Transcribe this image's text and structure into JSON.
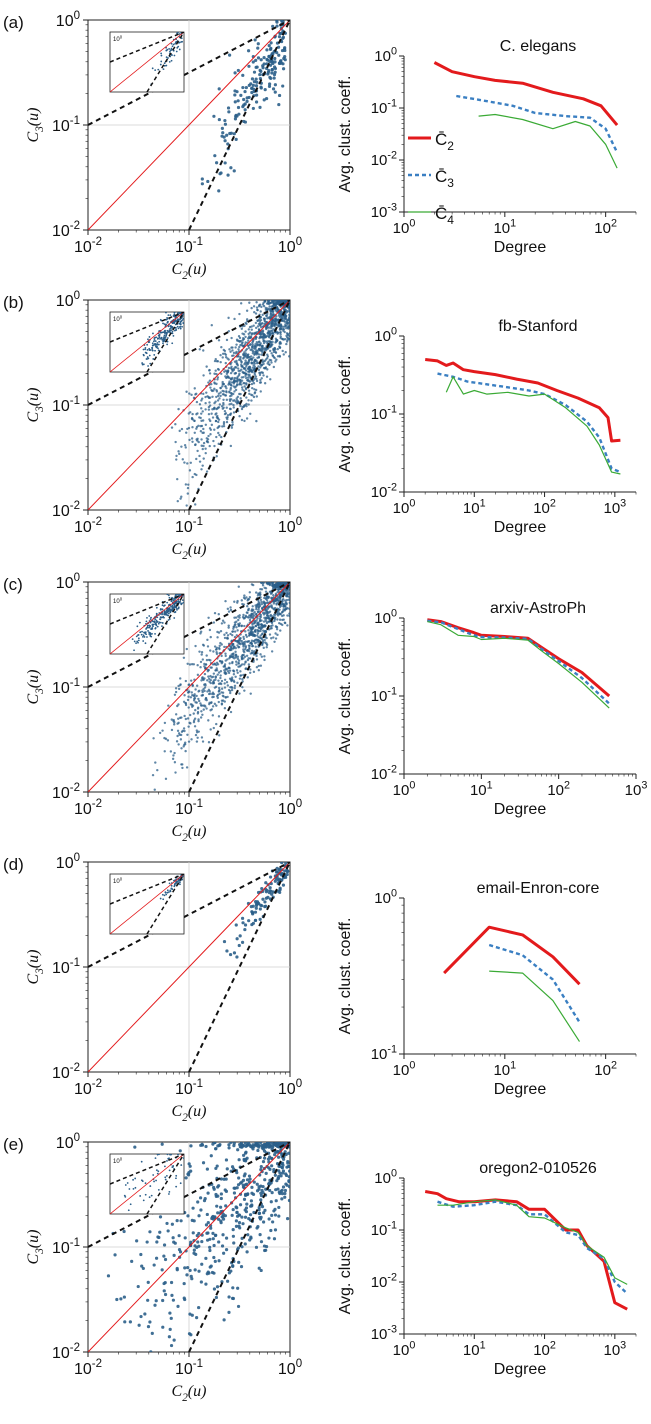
{
  "chart_data": [
    {
      "panel": "(a)",
      "type": "scatter",
      "xlabel": "C_2(u)",
      "ylabel": "C_3(u)",
      "xscale": "log",
      "yscale": "log",
      "xlim": [
        0.01,
        1
      ],
      "ylim": [
        0.01,
        1
      ],
      "grid": "lines at 0.1",
      "x_ticks": [
        "10^-2",
        "10^-1",
        "10^0"
      ],
      "y_ticks": [
        "10^-2",
        "10^-1",
        "10^0"
      ],
      "inset": true,
      "density": "sparse",
      "cloud": {
        "x_range": [
          0.12,
          0.9
        ],
        "slope": 1.6,
        "intercept": -0.05,
        "spread": 0.16,
        "n": 200
      },
      "reference_lines": [
        "y = x (red)",
        "y = x^2 (dashed)",
        "y = sqrt(x)/10 (dashed)"
      ]
    },
    {
      "panel": "(a)",
      "type": "line",
      "title": "C. elegans",
      "xlabel": "Degree",
      "ylabel": "Avg. clust. coeff.",
      "xscale": "log",
      "yscale": "log",
      "xlim": [
        1,
        200
      ],
      "ylim": [
        0.001,
        1
      ],
      "x_ticks": [
        "10^0",
        "10^1",
        "10^2"
      ],
      "y_ticks": [
        "10^-3",
        "10^-2",
        "10^-1",
        "10^0"
      ],
      "legend": [
        "C̄2",
        "C̄3",
        "C̄4"
      ],
      "legend_placement": "left",
      "series": [
        {
          "name": "C̄2",
          "points": [
            [
              2,
              0.75
            ],
            [
              3,
              0.5
            ],
            [
              5,
              0.4
            ],
            [
              8,
              0.34
            ],
            [
              15,
              0.3
            ],
            [
              30,
              0.2
            ],
            [
              60,
              0.15
            ],
            [
              90,
              0.11
            ],
            [
              130,
              0.047
            ]
          ]
        },
        {
          "name": "C̄3",
          "points": [
            [
              3.3,
              0.17
            ],
            [
              6,
              0.14
            ],
            [
              12,
              0.11
            ],
            [
              20,
              0.08
            ],
            [
              40,
              0.07
            ],
            [
              70,
              0.065
            ],
            [
              100,
              0.04
            ],
            [
              130,
              0.014
            ]
          ]
        },
        {
          "name": "C̄4",
          "points": [
            [
              5.5,
              0.07
            ],
            [
              8,
              0.075
            ],
            [
              15,
              0.06
            ],
            [
              30,
              0.04
            ],
            [
              50,
              0.055
            ],
            [
              70,
              0.045
            ],
            [
              100,
              0.02
            ],
            [
              130,
              0.007
            ]
          ]
        }
      ]
    },
    {
      "panel": "(b)",
      "type": "scatter",
      "xlabel": "C_2(u)",
      "ylabel": "C_3(u)",
      "xscale": "log",
      "yscale": "log",
      "xlim": [
        0.01,
        1
      ],
      "ylim": [
        0.01,
        1
      ],
      "grid": "lines at 0.1",
      "x_ticks": [
        "10^-2",
        "10^-1",
        "10^0"
      ],
      "y_ticks": [
        "10^-2",
        "10^-1",
        "10^0"
      ],
      "inset": true,
      "density": "dense",
      "cloud": {
        "x_range": [
          0.06,
          1.0
        ],
        "slope": 1.35,
        "intercept": 0.0,
        "spread": 0.18,
        "n": 1400
      },
      "reference_lines": [
        "y = x (red)",
        "y = x^2 (dashed)",
        "y = sqrt(x)/10 (dashed)"
      ]
    },
    {
      "panel": "(b)",
      "type": "line",
      "title": "fb-Stanford",
      "xlabel": "Degree",
      "ylabel": "Avg. clust. coeff.",
      "xscale": "log",
      "yscale": "log",
      "xlim": [
        1,
        2000
      ],
      "ylim": [
        0.01,
        1
      ],
      "x_ticks": [
        "10^0",
        "10^1",
        "10^2",
        "10^3"
      ],
      "y_ticks": [
        "10^-2",
        "10^-1",
        "10^0"
      ],
      "series": [
        {
          "name": "C̄2",
          "points": [
            [
              2,
              0.5
            ],
            [
              3,
              0.48
            ],
            [
              4,
              0.42
            ],
            [
              5,
              0.45
            ],
            [
              7,
              0.37
            ],
            [
              10,
              0.35
            ],
            [
              20,
              0.32
            ],
            [
              40,
              0.28
            ],
            [
              80,
              0.25
            ],
            [
              150,
              0.2
            ],
            [
              300,
              0.16
            ],
            [
              600,
              0.12
            ],
            [
              800,
              0.09
            ],
            [
              900,
              0.045
            ],
            [
              1200,
              0.046
            ]
          ]
        },
        {
          "name": "C̄3",
          "points": [
            [
              3,
              0.33
            ],
            [
              5,
              0.3
            ],
            [
              8,
              0.26
            ],
            [
              15,
              0.24
            ],
            [
              30,
              0.22
            ],
            [
              60,
              0.2
            ],
            [
              100,
              0.18
            ],
            [
              200,
              0.13
            ],
            [
              400,
              0.08
            ],
            [
              600,
              0.05
            ],
            [
              900,
              0.02
            ],
            [
              1200,
              0.018
            ]
          ]
        },
        {
          "name": "C̄4",
          "points": [
            [
              4,
              0.19
            ],
            [
              5,
              0.3
            ],
            [
              7,
              0.18
            ],
            [
              10,
              0.2
            ],
            [
              15,
              0.18
            ],
            [
              30,
              0.19
            ],
            [
              60,
              0.17
            ],
            [
              100,
              0.18
            ],
            [
              200,
              0.12
            ],
            [
              400,
              0.07
            ],
            [
              600,
              0.04
            ],
            [
              900,
              0.018
            ],
            [
              1200,
              0.017
            ]
          ]
        }
      ]
    },
    {
      "panel": "(c)",
      "type": "scatter",
      "xlabel": "C_2(u)",
      "ylabel": "C_3(u)",
      "xscale": "log",
      "yscale": "log",
      "xlim": [
        0.01,
        1
      ],
      "ylim": [
        0.01,
        1
      ],
      "grid": "lines at 0.1",
      "x_ticks": [
        "10^-2",
        "10^-1",
        "10^0"
      ],
      "y_ticks": [
        "10^-2",
        "10^-1",
        "10^0"
      ],
      "inset": true,
      "density": "dense",
      "cloud": {
        "x_range": [
          0.04,
          1.0
        ],
        "slope": 1.2,
        "intercept": 0.0,
        "spread": 0.16,
        "n": 1300
      },
      "reference_lines": [
        "y = x (red)",
        "y = x^2 (dashed)",
        "y = sqrt(x)/10 (dashed)"
      ]
    },
    {
      "panel": "(c)",
      "type": "line",
      "title": "arxiv-AstroPh",
      "xlabel": "Degree",
      "ylabel": "Avg. clust. coeff.",
      "xscale": "log",
      "yscale": "log",
      "xlim": [
        1,
        1000
      ],
      "ylim": [
        0.01,
        1
      ],
      "x_ticks": [
        "10^0",
        "10^1",
        "10^2",
        "10^3"
      ],
      "y_ticks": [
        "10^-2",
        "10^-1",
        "10^0"
      ],
      "series": [
        {
          "name": "C̄2",
          "points": [
            [
              2,
              0.95
            ],
            [
              3,
              0.9
            ],
            [
              5,
              0.75
            ],
            [
              8,
              0.65
            ],
            [
              10,
              0.6
            ],
            [
              20,
              0.58
            ],
            [
              40,
              0.55
            ],
            [
              60,
              0.42
            ],
            [
              100,
              0.3
            ],
            [
              200,
              0.2
            ],
            [
              450,
              0.1
            ]
          ]
        },
        {
          "name": "C̄3",
          "points": [
            [
              2,
              0.92
            ],
            [
              3,
              0.88
            ],
            [
              5,
              0.72
            ],
            [
              8,
              0.6
            ],
            [
              10,
              0.57
            ],
            [
              20,
              0.56
            ],
            [
              40,
              0.54
            ],
            [
              60,
              0.4
            ],
            [
              100,
              0.28
            ],
            [
              200,
              0.17
            ],
            [
              450,
              0.08
            ]
          ]
        },
        {
          "name": "C̄4",
          "points": [
            [
              2,
              0.9
            ],
            [
              3,
              0.82
            ],
            [
              5,
              0.6
            ],
            [
              8,
              0.58
            ],
            [
              10,
              0.53
            ],
            [
              20,
              0.55
            ],
            [
              40,
              0.52
            ],
            [
              60,
              0.38
            ],
            [
              100,
              0.26
            ],
            [
              200,
              0.15
            ],
            [
              450,
              0.07
            ]
          ]
        }
      ]
    },
    {
      "panel": "(d)",
      "type": "scatter",
      "xlabel": "C_2(u)",
      "ylabel": "C_3(u)",
      "xscale": "log",
      "yscale": "log",
      "xlim": [
        0.01,
        1
      ],
      "ylim": [
        0.01,
        1
      ],
      "grid": "lines at 0.1",
      "x_ticks": [
        "10^-2",
        "10^-1",
        "10^0"
      ],
      "y_ticks": [
        "10^-2",
        "10^-1",
        "10^0"
      ],
      "inset": true,
      "density": "sparse",
      "cloud": {
        "x_range": [
          0.22,
          0.95
        ],
        "slope": 1.3,
        "intercept": -0.02,
        "spread": 0.07,
        "n": 110
      },
      "reference_lines": [
        "y = x (red)",
        "y = x^2 (dashed)",
        "y = sqrt(x)/10 (dashed)"
      ]
    },
    {
      "panel": "(d)",
      "type": "line",
      "title": "email-Enron-core",
      "xlabel": "Degree",
      "ylabel": "Avg. clust. coeff.",
      "xscale": "log",
      "yscale": "log",
      "xlim": [
        1,
        200
      ],
      "ylim": [
        0.1,
        1
      ],
      "x_ticks": [
        "10^0",
        "10^1",
        "10^2"
      ],
      "y_ticks": [
        "10^-1",
        "10^0"
      ],
      "series": [
        {
          "name": "C̄2",
          "points": [
            [
              2.5,
              0.33
            ],
            [
              7,
              0.65
            ],
            [
              15,
              0.58
            ],
            [
              30,
              0.42
            ],
            [
              55,
              0.28
            ]
          ]
        },
        {
          "name": "C̄3",
          "points": [
            [
              7,
              0.5
            ],
            [
              15,
              0.43
            ],
            [
              30,
              0.3
            ],
            [
              55,
              0.16
            ]
          ]
        },
        {
          "name": "C̄4",
          "points": [
            [
              7,
              0.34
            ],
            [
              15,
              0.33
            ],
            [
              30,
              0.22
            ],
            [
              55,
              0.12
            ]
          ]
        }
      ]
    },
    {
      "panel": "(e)",
      "type": "scatter",
      "xlabel": "C_2(u)",
      "ylabel": "C_3(u)",
      "xscale": "log",
      "yscale": "log",
      "xlim": [
        0.01,
        1
      ],
      "ylim": [
        0.01,
        1
      ],
      "grid": "lines at 0.1",
      "x_ticks": [
        "10^-2",
        "10^-1",
        "10^0"
      ],
      "y_ticks": [
        "10^-2",
        "10^-1",
        "10^0"
      ],
      "inset": true,
      "density": "medium",
      "cloud": {
        "x_range": [
          0.013,
          1.0
        ],
        "slope": 1.0,
        "intercept": -0.02,
        "spread": 0.35,
        "n": 650
      },
      "reference_lines": [
        "y = x (red)",
        "y = x^2 (dashed)",
        "y = sqrt(x)/10 (dashed)"
      ]
    },
    {
      "panel": "(e)",
      "type": "line",
      "title": "oregon2-010526",
      "xlabel": "Degree",
      "ylabel": "Avg. clust. coeff.",
      "xscale": "log",
      "yscale": "log",
      "xlim": [
        1,
        2000
      ],
      "ylim": [
        0.001,
        1
      ],
      "x_ticks": [
        "10^0",
        "10^1",
        "10^2",
        "10^3"
      ],
      "y_ticks": [
        "10^-3",
        "10^-2",
        "10^-1",
        "10^0"
      ],
      "series": [
        {
          "name": "C̄2",
          "points": [
            [
              2,
              0.55
            ],
            [
              3,
              0.5
            ],
            [
              4,
              0.4
            ],
            [
              6,
              0.35
            ],
            [
              10,
              0.35
            ],
            [
              20,
              0.38
            ],
            [
              40,
              0.35
            ],
            [
              60,
              0.25
            ],
            [
              100,
              0.25
            ],
            [
              200,
              0.1
            ],
            [
              300,
              0.1
            ],
            [
              400,
              0.05
            ],
            [
              700,
              0.025
            ],
            [
              1000,
              0.004
            ],
            [
              1500,
              0.003
            ]
          ]
        },
        {
          "name": "C̄3",
          "points": [
            [
              3,
              0.35
            ],
            [
              5,
              0.28
            ],
            [
              10,
              0.3
            ],
            [
              20,
              0.35
            ],
            [
              40,
              0.3
            ],
            [
              60,
              0.2
            ],
            [
              100,
              0.2
            ],
            [
              200,
              0.09
            ],
            [
              300,
              0.08
            ],
            [
              400,
              0.045
            ],
            [
              700,
              0.028
            ],
            [
              1000,
              0.01
            ],
            [
              1500,
              0.006
            ]
          ]
        },
        {
          "name": "C̄4",
          "points": [
            [
              3,
              0.3
            ],
            [
              5,
              0.3
            ],
            [
              10,
              0.35
            ],
            [
              20,
              0.38
            ],
            [
              40,
              0.3
            ],
            [
              60,
              0.18
            ],
            [
              100,
              0.17
            ],
            [
              200,
              0.11
            ],
            [
              300,
              0.09
            ],
            [
              400,
              0.05
            ],
            [
              700,
              0.03
            ],
            [
              1000,
              0.012
            ],
            [
              1500,
              0.009
            ]
          ]
        }
      ]
    }
  ],
  "panels": [
    {
      "label": "(a)",
      "title": "C. elegans"
    },
    {
      "label": "(b)",
      "title": "fb-Stanford"
    },
    {
      "label": "(c)",
      "title": "arxiv-AstroPh"
    },
    {
      "label": "(d)",
      "title": "email-Enron-core"
    },
    {
      "label": "(e)",
      "title": "oregon2-010526"
    }
  ],
  "legend": {
    "c2": "C̄2",
    "c3": "C̄3",
    "c4": "C̄4"
  },
  "colors": {
    "c2": "#e31a1c",
    "c3": "#3a7fc2",
    "c4": "#3aaa35",
    "scatter": "#2b5f8a",
    "diag": "#e31a1c"
  }
}
